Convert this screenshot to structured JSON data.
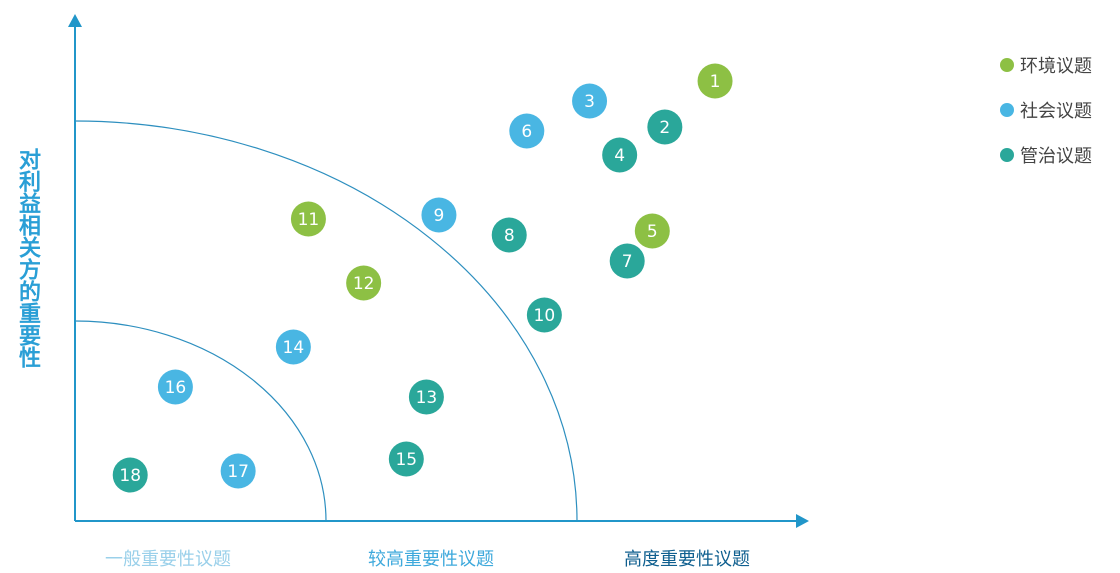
{
  "chart_data": {
    "type": "scatter",
    "ylabel": "对利益相关方的重要性",
    "xlabel": "",
    "x_categories": [
      "一般重要性议题",
      "较高重要性议题",
      "高度重要性议题"
    ],
    "legend": [
      {
        "name": "环境议题",
        "color": "#8dc044"
      },
      {
        "name": "社会议题",
        "color": "#49b6e3"
      },
      {
        "name": "管治议题",
        "color": "#2aa79a"
      }
    ],
    "points": [
      {
        "label": "1",
        "series": "环境议题",
        "x": 2.55,
        "y": 2.2
      },
      {
        "label": "2",
        "series": "管治议题",
        "x": 2.35,
        "y": 1.97
      },
      {
        "label": "3",
        "series": "社会议题",
        "x": 2.05,
        "y": 2.1
      },
      {
        "label": "4",
        "series": "管治议题",
        "x": 2.17,
        "y": 1.83
      },
      {
        "label": "5",
        "series": "环境议题",
        "x": 2.3,
        "y": 1.45
      },
      {
        "label": "6",
        "series": "社会议题",
        "x": 1.8,
        "y": 1.95
      },
      {
        "label": "7",
        "series": "管治议题",
        "x": 2.2,
        "y": 1.3
      },
      {
        "label": "8",
        "series": "管治议题",
        "x": 1.73,
        "y": 1.43
      },
      {
        "label": "9",
        "series": "社会议题",
        "x": 1.45,
        "y": 1.53
      },
      {
        "label": "10",
        "series": "管治议题",
        "x": 1.87,
        "y": 1.03
      },
      {
        "label": "11",
        "series": "环境议题",
        "x": 0.93,
        "y": 1.51
      },
      {
        "label": "12",
        "series": "环境议题",
        "x": 1.15,
        "y": 1.19
      },
      {
        "label": "13",
        "series": "管治议题",
        "x": 1.4,
        "y": 0.62
      },
      {
        "label": "14",
        "series": "社会议题",
        "x": 0.87,
        "y": 0.87
      },
      {
        "label": "15",
        "series": "管治议题",
        "x": 1.32,
        "y": 0.31
      },
      {
        "label": "16",
        "series": "社会议题",
        "x": 0.4,
        "y": 0.67
      },
      {
        "label": "17",
        "series": "社会议题",
        "x": 0.65,
        "y": 0.25
      },
      {
        "label": "18",
        "series": "管治议题",
        "x": 0.22,
        "y": 0.23
      }
    ],
    "xlim": [
      0,
      3
    ],
    "ylim": [
      0,
      2.25
    ],
    "zone_boundaries": [
      1,
      2
    ]
  }
}
